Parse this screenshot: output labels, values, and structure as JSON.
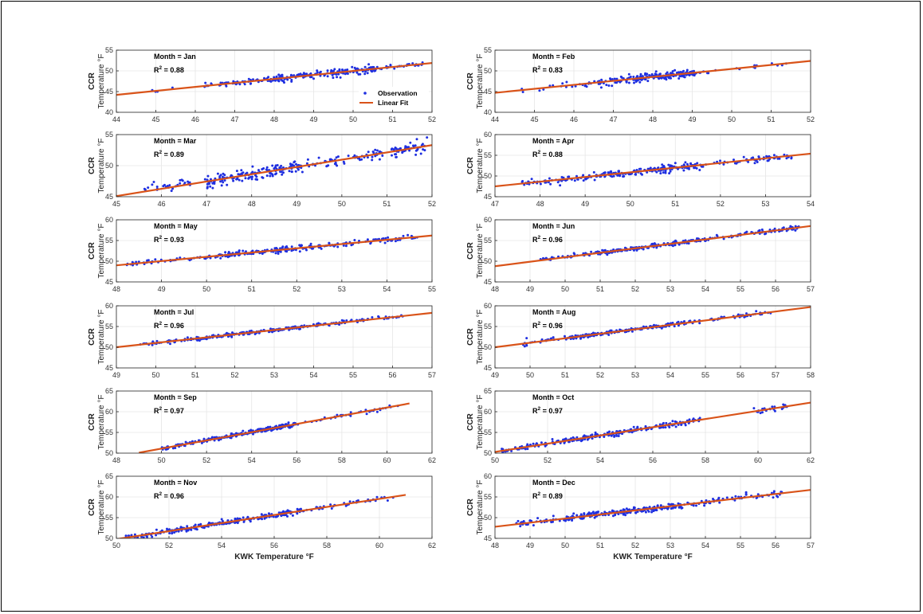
{
  "figure": {
    "ylabel_line1": "CCR",
    "ylabel_line2": "Temperature °F",
    "xlabel": "KWK Temperature °F",
    "legend": {
      "observation_label": "Observation",
      "fit_label": "Linear Fit"
    },
    "colors": {
      "observation": "#1f2fe0",
      "fit": "#d95319",
      "grid": "#e6e6e6",
      "axis": "#262626"
    }
  },
  "chart_data": [
    {
      "type": "scatter",
      "month_label": "Month = Jan",
      "r2_text": "= 0.88",
      "xlim": [
        44,
        52
      ],
      "ylim": [
        40,
        55
      ],
      "xticks": [
        44,
        45,
        46,
        47,
        48,
        49,
        50,
        51,
        52
      ],
      "yticks": [
        40,
        45,
        50,
        55
      ],
      "fit": {
        "x": [
          44,
          52
        ],
        "y": [
          44.2,
          51.9
        ]
      },
      "clusters": [
        {
          "x0": 44.8,
          "x1": 46.3,
          "n": 8,
          "s": 0.7
        },
        {
          "x0": 46.3,
          "x1": 47.8,
          "n": 45,
          "s": 0.6
        },
        {
          "x0": 47.8,
          "x1": 50.5,
          "n": 160,
          "s": 0.8
        },
        {
          "x0": 50.5,
          "x1": 51.9,
          "n": 35,
          "s": 0.5
        }
      ],
      "show_legend": true
    },
    {
      "type": "scatter",
      "month_label": "Month = Feb",
      "r2_text": "= 0.83",
      "xlim": [
        44,
        52
      ],
      "ylim": [
        40,
        55
      ],
      "xticks": [
        44,
        45,
        46,
        47,
        48,
        49,
        50,
        51,
        52
      ],
      "yticks": [
        40,
        45,
        50,
        55
      ],
      "fit": {
        "x": [
          44,
          52
        ],
        "y": [
          44.7,
          52.4
        ]
      },
      "clusters": [
        {
          "x0": 44.5,
          "x1": 46.5,
          "n": 20,
          "s": 0.8
        },
        {
          "x0": 46.5,
          "x1": 47.5,
          "n": 40,
          "s": 1.0
        },
        {
          "x0": 47.5,
          "x1": 49.1,
          "n": 160,
          "s": 0.8
        },
        {
          "x0": 49.1,
          "x1": 51.5,
          "n": 18,
          "s": 0.5
        }
      ]
    },
    {
      "type": "scatter",
      "month_label": "Month = Mar",
      "r2_text": "= 0.89",
      "xlim": [
        45,
        52
      ],
      "ylim": [
        45,
        55
      ],
      "xticks": [
        45,
        46,
        47,
        48,
        49,
        50,
        51,
        52
      ],
      "yticks": [
        45,
        50,
        55
      ],
      "fit": {
        "x": [
          45,
          52
        ],
        "y": [
          45.1,
          53.3
        ]
      },
      "clusters": [
        {
          "x0": 45.6,
          "x1": 47,
          "n": 30,
          "s": 0.9
        },
        {
          "x0": 47,
          "x1": 49,
          "n": 140,
          "s": 0.9
        },
        {
          "x0": 49,
          "x1": 51.9,
          "n": 120,
          "s": 0.9
        }
      ]
    },
    {
      "type": "scatter",
      "month_label": "Month = Apr",
      "r2_text": "= 0.88",
      "xlim": [
        47,
        54
      ],
      "ylim": [
        45,
        60
      ],
      "xticks": [
        47,
        48,
        49,
        50,
        51,
        52,
        53,
        54
      ],
      "yticks": [
        45,
        50,
        55,
        60
      ],
      "fit": {
        "x": [
          47,
          54
        ],
        "y": [
          47.5,
          55.4
        ]
      },
      "clusters": [
        {
          "x0": 47.6,
          "x1": 49,
          "n": 50,
          "s": 0.7
        },
        {
          "x0": 49,
          "x1": 51.5,
          "n": 170,
          "s": 0.8
        },
        {
          "x0": 51.5,
          "x1": 53.6,
          "n": 60,
          "s": 0.9
        }
      ]
    },
    {
      "type": "scatter",
      "month_label": "Month = May",
      "r2_text": "= 0.93",
      "xlim": [
        48,
        55
      ],
      "ylim": [
        45,
        60
      ],
      "xticks": [
        48,
        49,
        50,
        51,
        52,
        53,
        54,
        55
      ],
      "yticks": [
        45,
        50,
        55,
        60
      ],
      "fit": {
        "x": [
          48,
          55
        ],
        "y": [
          49.0,
          56.2
        ]
      },
      "clusters": [
        {
          "x0": 48.2,
          "x1": 50,
          "n": 40,
          "s": 0.5
        },
        {
          "x0": 50,
          "x1": 52.5,
          "n": 150,
          "s": 0.6
        },
        {
          "x0": 52.5,
          "x1": 54.7,
          "n": 70,
          "s": 0.6
        }
      ]
    },
    {
      "type": "scatter",
      "month_label": "Month = Jun",
      "r2_text": "= 0.96",
      "xlim": [
        48,
        57
      ],
      "ylim": [
        45,
        60
      ],
      "xticks": [
        48,
        49,
        50,
        51,
        52,
        53,
        54,
        55,
        56,
        57
      ],
      "yticks": [
        45,
        50,
        55,
        60
      ],
      "fit": {
        "x": [
          48,
          57
        ],
        "y": [
          48.8,
          58.5
        ]
      },
      "clusters": [
        {
          "x0": 49.3,
          "x1": 51,
          "n": 40,
          "s": 0.5
        },
        {
          "x0": 51,
          "x1": 54,
          "n": 150,
          "s": 0.5
        },
        {
          "x0": 54,
          "x1": 56.7,
          "n": 70,
          "s": 0.5
        }
      ]
    },
    {
      "type": "scatter",
      "month_label": "Month = Jul",
      "r2_text": "= 0.96",
      "xlim": [
        49,
        57
      ],
      "ylim": [
        45,
        60
      ],
      "xticks": [
        49,
        50,
        51,
        52,
        53,
        54,
        55,
        56,
        57
      ],
      "yticks": [
        45,
        50,
        55,
        60
      ],
      "fit": {
        "x": [
          49,
          57
        ],
        "y": [
          50.0,
          58.3
        ]
      },
      "clusters": [
        {
          "x0": 49.6,
          "x1": 51,
          "n": 40,
          "s": 0.4
        },
        {
          "x0": 51,
          "x1": 54,
          "n": 160,
          "s": 0.4
        },
        {
          "x0": 54,
          "x1": 56.3,
          "n": 60,
          "s": 0.5
        }
      ]
    },
    {
      "type": "scatter",
      "month_label": "Month = Aug",
      "r2_text": "= 0.96",
      "xlim": [
        49,
        58
      ],
      "ylim": [
        45,
        60
      ],
      "xticks": [
        49,
        50,
        51,
        52,
        53,
        54,
        55,
        56,
        57,
        58
      ],
      "yticks": [
        45,
        50,
        55,
        60
      ],
      "fit": {
        "x": [
          49,
          58
        ],
        "y": [
          50.0,
          59.7
        ]
      },
      "clusters": [
        {
          "x0": 49.8,
          "x1": 51,
          "n": 25,
          "s": 0.6
        },
        {
          "x0": 51,
          "x1": 54,
          "n": 170,
          "s": 0.4
        },
        {
          "x0": 54,
          "x1": 56.9,
          "n": 60,
          "s": 0.5
        }
      ]
    },
    {
      "type": "scatter",
      "month_label": "Month = Sep",
      "r2_text": "= 0.97",
      "xlim": [
        48,
        62
      ],
      "ylim": [
        50,
        65
      ],
      "xticks": [
        48,
        50,
        52,
        54,
        56,
        58,
        60,
        62
      ],
      "yticks": [
        50,
        55,
        60,
        65
      ],
      "fit": {
        "x": [
          49,
          61
        ],
        "y": [
          50.1,
          62.0
        ]
      },
      "clusters": [
        {
          "x0": 50,
          "x1": 52,
          "n": 60,
          "s": 0.5
        },
        {
          "x0": 52,
          "x1": 56,
          "n": 180,
          "s": 0.5
        },
        {
          "x0": 56,
          "x1": 60.5,
          "n": 35,
          "s": 0.5
        }
      ]
    },
    {
      "type": "scatter",
      "month_label": "Month = Oct",
      "r2_text": "= 0.97",
      "xlim": [
        50,
        62
      ],
      "ylim": [
        50,
        65
      ],
      "xticks": [
        50,
        52,
        54,
        56,
        58,
        60,
        62
      ],
      "yticks": [
        50,
        55,
        60,
        65
      ],
      "fit": {
        "x": [
          50,
          62
        ],
        "y": [
          50.3,
          62.2
        ]
      },
      "clusters": [
        {
          "x0": 50.2,
          "x1": 52.5,
          "n": 60,
          "s": 0.5
        },
        {
          "x0": 52.5,
          "x1": 57.8,
          "n": 200,
          "s": 0.5
        },
        {
          "x0": 59.8,
          "x1": 61.2,
          "n": 25,
          "s": 0.6
        }
      ]
    },
    {
      "type": "scatter",
      "month_label": "Month = Nov",
      "r2_text": "= 0.96",
      "xlim": [
        50,
        62
      ],
      "ylim": [
        50,
        65
      ],
      "xticks": [
        50,
        52,
        54,
        56,
        58,
        60,
        62
      ],
      "yticks": [
        50,
        55,
        60,
        65
      ],
      "fit": {
        "x": [
          50,
          61
        ],
        "y": [
          49.8,
          60.5
        ]
      },
      "clusters": [
        {
          "x0": 50.2,
          "x1": 52.5,
          "n": 70,
          "s": 0.6
        },
        {
          "x0": 52.5,
          "x1": 57,
          "n": 180,
          "s": 0.6
        },
        {
          "x0": 57,
          "x1": 60.6,
          "n": 45,
          "s": 0.5
        }
      ]
    },
    {
      "type": "scatter",
      "month_label": "Month = Dec",
      "r2_text": "= 0.89",
      "xlim": [
        48,
        57
      ],
      "ylim": [
        45,
        60
      ],
      "xticks": [
        48,
        49,
        50,
        51,
        52,
        53,
        54,
        55,
        56,
        57
      ],
      "yticks": [
        45,
        50,
        55,
        60
      ],
      "fit": {
        "x": [
          48,
          57
        ],
        "y": [
          47.8,
          56.7
        ]
      },
      "clusters": [
        {
          "x0": 48.6,
          "x1": 50,
          "n": 40,
          "s": 0.7
        },
        {
          "x0": 50,
          "x1": 53.5,
          "n": 200,
          "s": 0.7
        },
        {
          "x0": 53.5,
          "x1": 56.2,
          "n": 60,
          "s": 0.7
        }
      ]
    }
  ]
}
